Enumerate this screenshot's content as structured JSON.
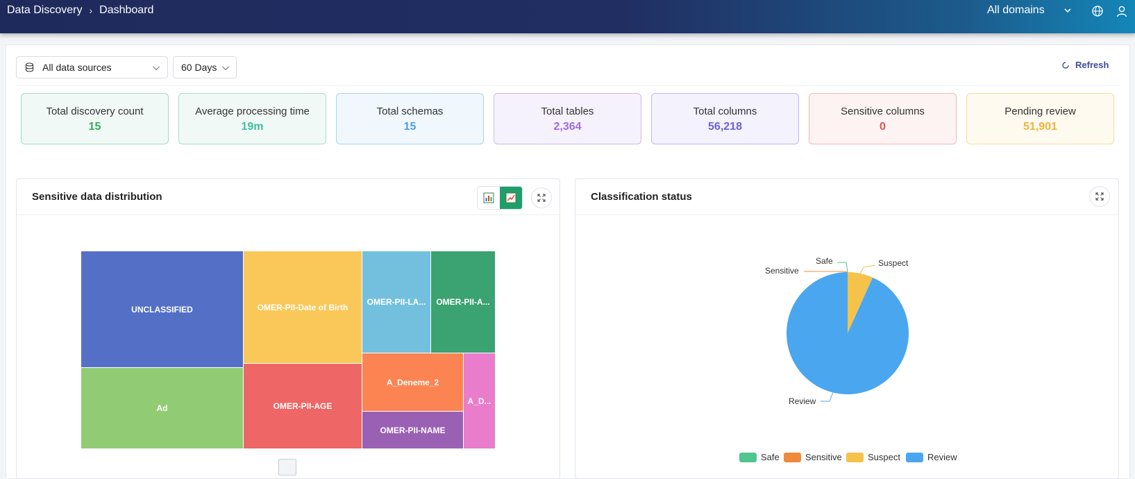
{
  "header": {
    "breadcrumb": [
      "Data Discovery",
      "Dashboard"
    ],
    "breadcrumb_sep": "›",
    "domain_select": "All domains"
  },
  "filters": {
    "data_source": "All data sources",
    "period": "60 Days",
    "refresh_label": "Refresh"
  },
  "stats": [
    {
      "label": "Total discovery count",
      "value": "15",
      "color": "#2fae5b",
      "bg": "#f1f9f6",
      "border": "#9edcc3"
    },
    {
      "label": "Average processing time",
      "value": "19m",
      "color": "#3cbf9c",
      "bg": "#f1f9f7",
      "border": "#a3dfcf"
    },
    {
      "label": "Total schemas",
      "value": "15",
      "color": "#4d9fe0",
      "bg": "#f0f7fd",
      "border": "#a8d3f2"
    },
    {
      "label": "Total tables",
      "value": "2,364",
      "color": "#9a6ce4",
      "bg": "#f6f2fd",
      "border": "#cdb7f0"
    },
    {
      "label": "Total columns",
      "value": "56,218",
      "color": "#6a62d8",
      "bg": "#f3f2fd",
      "border": "#bdb8f0"
    },
    {
      "label": "Sensitive columns",
      "value": "0",
      "color": "#e5504f",
      "bg": "#fdf3f3",
      "border": "#f2b8b8"
    },
    {
      "label": "Pending review",
      "value": "51,901",
      "color": "#f0b43a",
      "bg": "#fefaf0",
      "border": "#f6dc9f"
    }
  ],
  "treemap_card": {
    "title": "Sensitive data distribution",
    "view_toggle": [
      "bar-chart-icon",
      "line-chart-icon"
    ],
    "active_view": "line-chart-icon",
    "cells": [
      {
        "label": "UNCLASSIFIED",
        "color": "#5470c6"
      },
      {
        "label": "Ad",
        "color": "#91cc75"
      },
      {
        "label": "OMER-PII-Date of Birth",
        "color": "#fac858"
      },
      {
        "label": "OMER-PII-AGE",
        "color": "#ee6666"
      },
      {
        "label": "OMER-PII-LA...",
        "color": "#73c0de"
      },
      {
        "label": "OMER-PII-A...",
        "color": "#3ba272"
      },
      {
        "label": "A_Deneme_2",
        "color": "#fc8452"
      },
      {
        "label": "OMER-PII-NAME",
        "color": "#9a60b4"
      },
      {
        "label": "A_D...",
        "color": "#ea7ccc"
      }
    ]
  },
  "pie_card": {
    "title": "Classification status"
  },
  "chart_data": {
    "type": "pie",
    "categories": [
      "Safe",
      "Sensitive",
      "Suspect",
      "Review"
    ],
    "values": [
      0,
      0,
      3500,
      48401
    ],
    "colors": [
      "#52c48e",
      "#ee8a3a",
      "#f5c24b",
      "#4aa6ee"
    ],
    "legend": "bottom"
  }
}
